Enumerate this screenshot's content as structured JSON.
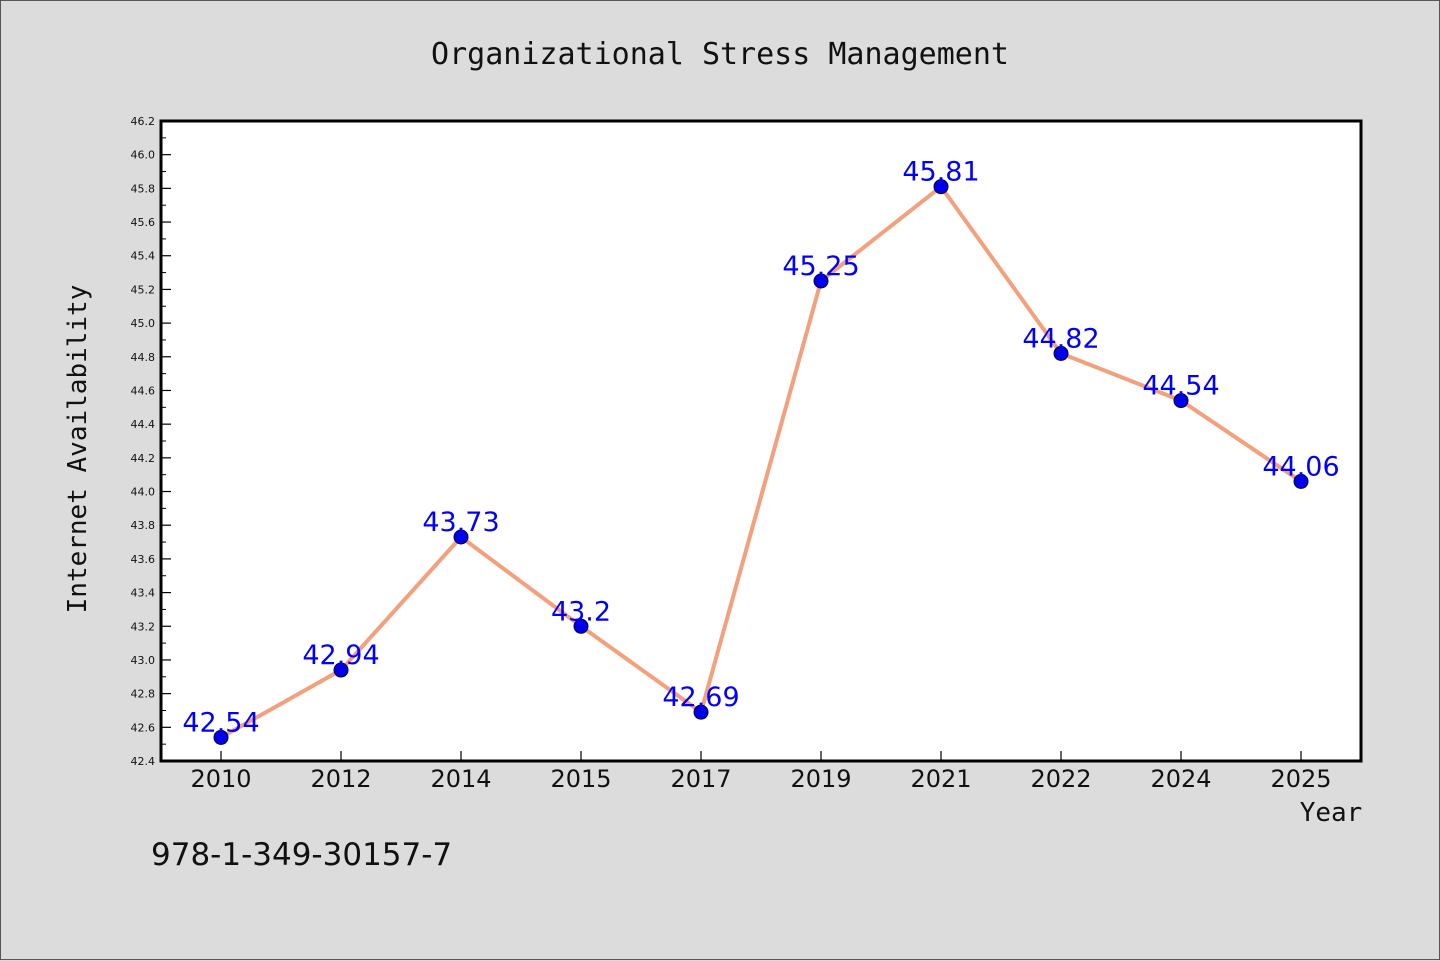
{
  "chart_data": {
    "type": "line",
    "title": "Organizational Stress Management",
    "xlabel": "Year",
    "ylabel": "Internet Availability",
    "categories": [
      "2010",
      "2012",
      "2014",
      "2015",
      "2017",
      "2019",
      "2021",
      "2022",
      "2024",
      "2025"
    ],
    "values": [
      42.54,
      42.94,
      43.73,
      43.2,
      42.69,
      45.25,
      45.81,
      44.82,
      44.54,
      44.06
    ],
    "data_labels": [
      "42.54",
      "42.94",
      "43.73",
      "43.2",
      "42.69",
      "45.25",
      "45.81",
      "44.82",
      "44.54",
      "44.06"
    ],
    "ylim": [
      42.4,
      46.2
    ],
    "y_ticks": [
      "42.4",
      "42.6",
      "42.8",
      "43.0",
      "43.2",
      "43.4",
      "43.6",
      "43.8",
      "44.0",
      "44.2",
      "44.4",
      "44.6",
      "44.8",
      "45.0",
      "45.2",
      "45.4",
      "45.6",
      "45.8",
      "46.0",
      "46.2"
    ],
    "grid": false,
    "line_color": "#f4a07c",
    "marker_color": "#0000ee",
    "label_color": "#0000ff"
  },
  "annotation": "978-1-349-30157-7"
}
